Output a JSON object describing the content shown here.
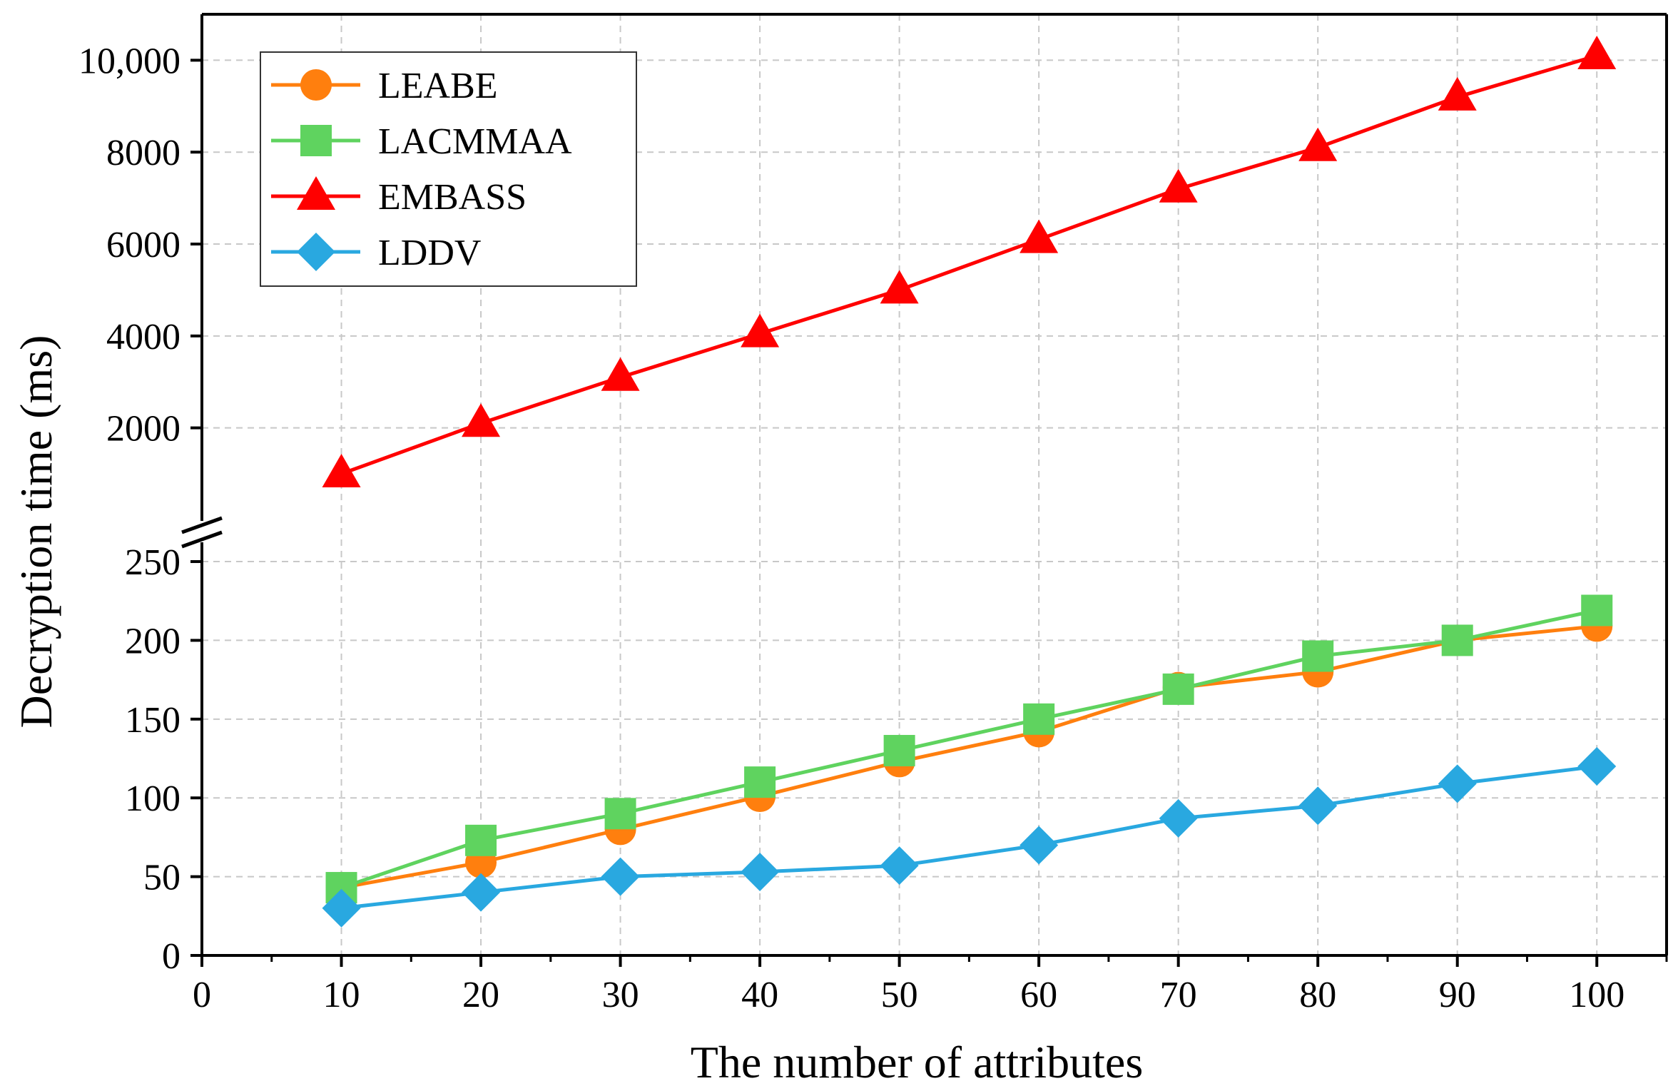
{
  "chart_data": {
    "type": "line",
    "xlabel": "The number of attributes",
    "ylabel": "Decryption time (ms)",
    "x": [
      10,
      20,
      30,
      40,
      50,
      60,
      70,
      80,
      90,
      100
    ],
    "xlim": [
      0,
      105
    ],
    "x_ticks": [
      0,
      10,
      20,
      30,
      40,
      50,
      60,
      70,
      80,
      90,
      100
    ],
    "x_tick_labels": [
      "0",
      "10",
      "20",
      "30",
      "40",
      "50",
      "60",
      "70",
      "80",
      "90",
      "100"
    ],
    "broken_y_axis": true,
    "y_lower": {
      "range": [
        0,
        255
      ],
      "ticks": [
        0,
        50,
        100,
        150,
        200,
        250
      ],
      "tick_labels": [
        "0",
        "50",
        "100",
        "150",
        "200",
        "250"
      ]
    },
    "y_upper": {
      "range": [
        100,
        11000
      ],
      "ticks": [
        2000,
        4000,
        6000,
        8000,
        10000
      ],
      "tick_labels": [
        "2000",
        "4000",
        "6000",
        "8000",
        "10,000"
      ]
    },
    "grid": true,
    "legend_position": "top-left",
    "series": [
      {
        "name": "LEABE",
        "color": "#ff7f0e",
        "marker": "circle",
        "segment": "lower",
        "values": [
          43,
          59,
          80,
          101,
          123,
          142,
          170,
          180,
          200,
          209
        ]
      },
      {
        "name": "LACMMAA",
        "color": "#5fd35f",
        "marker": "square",
        "segment": "lower",
        "values": [
          43,
          73,
          90,
          110,
          130,
          150,
          169,
          190,
          200,
          219
        ]
      },
      {
        "name": "EMBASS",
        "color": "#ff0000",
        "marker": "triangle",
        "segment": "upper",
        "values": [
          1000,
          2100,
          3100,
          4050,
          5000,
          6100,
          7200,
          8100,
          9200,
          10100
        ]
      },
      {
        "name": "LDDV",
        "color": "#29a8e0",
        "marker": "diamond",
        "segment": "lower",
        "values": [
          30,
          40,
          50,
          53,
          57,
          70,
          87,
          95,
          109,
          120
        ]
      }
    ]
  }
}
